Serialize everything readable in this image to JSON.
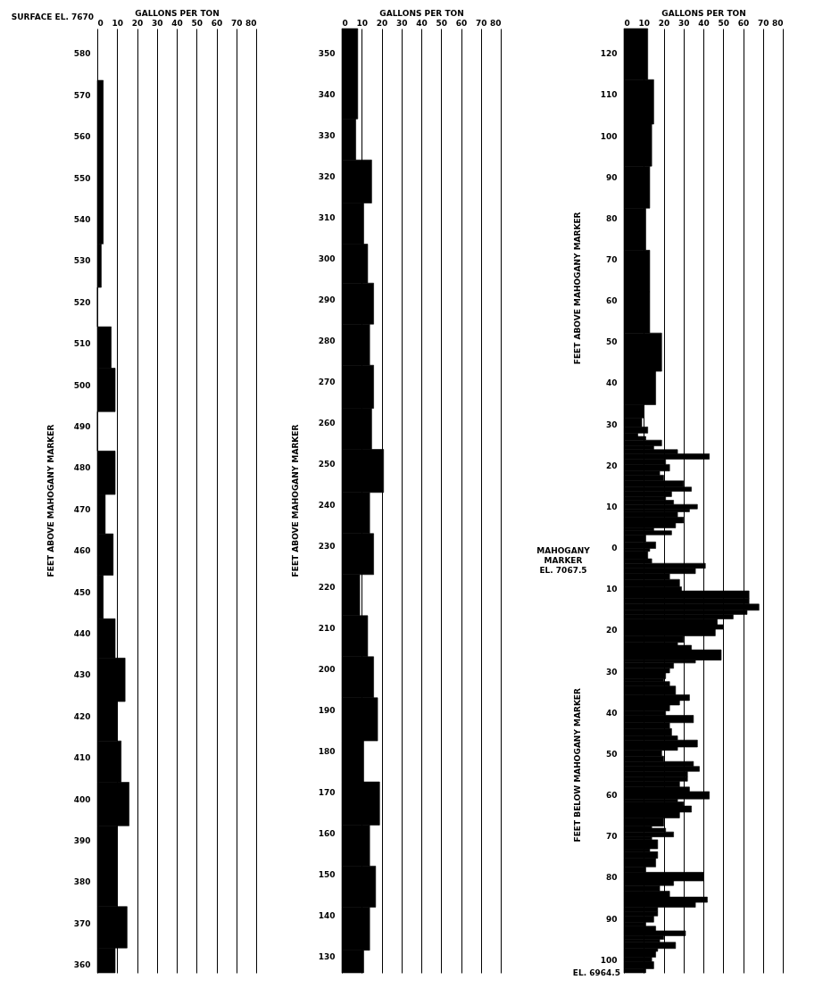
{
  "chart_data": [
    {
      "type": "histogram",
      "orientation": "horizontal",
      "xlabel": "GALLONS PER TON",
      "ylabel": "FEET ABOVE MAHOGANY MARKER",
      "color": "#000000",
      "bins": [
        573.5,
        534,
        523.5,
        514,
        504,
        493.5,
        484,
        473.5,
        464,
        454,
        443.5,
        434,
        423.5,
        414,
        404,
        393.5,
        374,
        364,
        358
      ],
      "values": [
        3,
        2,
        0,
        7,
        9,
        0,
        9,
        4,
        8,
        3,
        9,
        14,
        10,
        12,
        16,
        10,
        15,
        9
      ],
      "xlim": [
        0,
        80
      ],
      "xticks": [
        0,
        10,
        20,
        30,
        40,
        50,
        60,
        70,
        80
      ],
      "ylim": [
        358,
        586
      ],
      "yticks": [
        360,
        370,
        380,
        390,
        400,
        410,
        420,
        430,
        440,
        450,
        460,
        470,
        480,
        490,
        500,
        510,
        520,
        530,
        540,
        550,
        560,
        570,
        580
      ],
      "grid": "x",
      "annotations": [
        "SURFACE EL. 7670"
      ]
    },
    {
      "type": "histogram",
      "orientation": "horizontal",
      "xlabel": "GALLONS PER TON",
      "ylabel": "FEET ABOVE MAHOGANY MARKER",
      "color": "#000000",
      "bins": [
        356,
        334,
        324,
        313.5,
        303.5,
        294,
        284,
        274,
        263.5,
        253.5,
        243,
        233,
        223,
        213,
        203,
        193,
        182.5,
        172.5,
        162,
        152,
        142,
        131.5,
        126
      ],
      "values": [
        8,
        7,
        15,
        11,
        13,
        16,
        14,
        16,
        15,
        21,
        14,
        16,
        9,
        13,
        16,
        18,
        11,
        19,
        14,
        17,
        14,
        11
      ],
      "xlim": [
        0,
        80
      ],
      "xticks": [
        0,
        10,
        20,
        30,
        40,
        50,
        60,
        70,
        80
      ],
      "ylim": [
        126,
        356
      ],
      "yticks": [
        130,
        140,
        150,
        160,
        170,
        180,
        190,
        200,
        210,
        220,
        230,
        240,
        250,
        260,
        270,
        280,
        290,
        300,
        310,
        320,
        330,
        340,
        350
      ],
      "grid": "x"
    },
    {
      "type": "histogram",
      "orientation": "horizontal",
      "xlabel": "GALLONS PER TON",
      "ylabel": "FEET ABOVE MAHOGANY MARKER",
      "color": "#000000",
      "bins": [
        126,
        113.6,
        102.8,
        92.6,
        82.4,
        72.2,
        62.1,
        52.1,
        42.8,
        34.7,
        31.5,
        29.3,
        27.8,
        27,
        26.1,
        24.7,
        23.8,
        22.8,
        21.5,
        20.2,
        18.6,
        17.6,
        16.2,
        14.7,
        13.7,
        12.4,
        11.5,
        10.5,
        9.4,
        8.7,
        7.4,
        6,
        4.8,
        4.1,
        3.1,
        1.4,
        -0.2,
        -0.9,
        -2.7,
        -3.8,
        -5,
        -6.3,
        -7.7,
        -9.5,
        -10.5,
        -12.3,
        -13.7,
        -15.2,
        -16.2,
        -17.3,
        -18.7,
        -19.8,
        -21.4,
        -23,
        -23.7,
        -24.8,
        -27.3,
        -28,
        -29.3,
        -30.4,
        -31.8,
        -32.5,
        -33.6,
        -35.7,
        -37.1,
        -38.2,
        -39.6,
        -40.7,
        -42.5,
        -43.9,
        -45.7,
        -46.7,
        -48.4,
        -49.2,
        -50.6,
        -51.9,
        -53.1,
        -54.3,
        -55.6,
        -56.7,
        -58.1,
        -59.2,
        -61,
        -61.7,
        -62.7,
        -64.2,
        -65.6,
        -67.6,
        -68.1,
        -69,
        -70.2,
        -70.9,
        -73.1,
        -73.8,
        -75.4,
        -77.5,
        -78.8,
        -80.9,
        -82,
        -83.4,
        -84.8,
        -86.1,
        -87.3,
        -88.4,
        -89.4,
        -90.9,
        -91.9,
        -93,
        -94.2,
        -95.1,
        -95.8,
        -97.3,
        -98,
        -99.4,
        -100.5,
        -102.2,
        -103.2
      ],
      "values": [
        12,
        15,
        14,
        13,
        11,
        13,
        13,
        19,
        16,
        10,
        9,
        12,
        7,
        11,
        19,
        15,
        27,
        43,
        21,
        23,
        18,
        20,
        30,
        34,
        24,
        21,
        25,
        37,
        33,
        27,
        30,
        26,
        15,
        24,
        11,
        16,
        13,
        12,
        14,
        41,
        36,
        23,
        28,
        29,
        63,
        63,
        68,
        62,
        55,
        47,
        50,
        46,
        30,
        27,
        34,
        49,
        36,
        25,
        23,
        21,
        20,
        23,
        26,
        33,
        28,
        23,
        21,
        35,
        23,
        24,
        27,
        37,
        27,
        19,
        20,
        35,
        38,
        32,
        32,
        28,
        33,
        43,
        27,
        30,
        34,
        28,
        20,
        14,
        21,
        25,
        14,
        17,
        13,
        17,
        16,
        11,
        40,
        25,
        18,
        23,
        42,
        36,
        17,
        17,
        15,
        11,
        16,
        31,
        20,
        18,
        26,
        17,
        16,
        14,
        15,
        11
      ],
      "xlim": [
        0,
        80
      ],
      "xticks": [
        0,
        10,
        20,
        30,
        40,
        50,
        60,
        70,
        80
      ],
      "ylim": [
        -103.2,
        126
      ],
      "yticks": [
        {
          "value": -100,
          "label": "100"
        },
        {
          "value": -90,
          "label": "90"
        },
        {
          "value": -80,
          "label": "80"
        },
        {
          "value": -70,
          "label": "70"
        },
        {
          "value": -60,
          "label": "60"
        },
        {
          "value": -50,
          "label": "50"
        },
        {
          "value": -40,
          "label": "40"
        },
        {
          "value": -30,
          "label": "30"
        },
        {
          "value": -20,
          "label": "20"
        },
        {
          "value": -10,
          "label": "10"
        },
        0,
        10,
        20,
        30,
        40,
        50,
        60,
        70,
        80,
        90,
        100,
        110,
        120
      ],
      "grid": "x",
      "annotations": [
        "MAHOGANY MARKER EL. 7067.5",
        "FEET BELOW MAHOGANY MARKER",
        "EL. 6964.5"
      ]
    }
  ]
}
